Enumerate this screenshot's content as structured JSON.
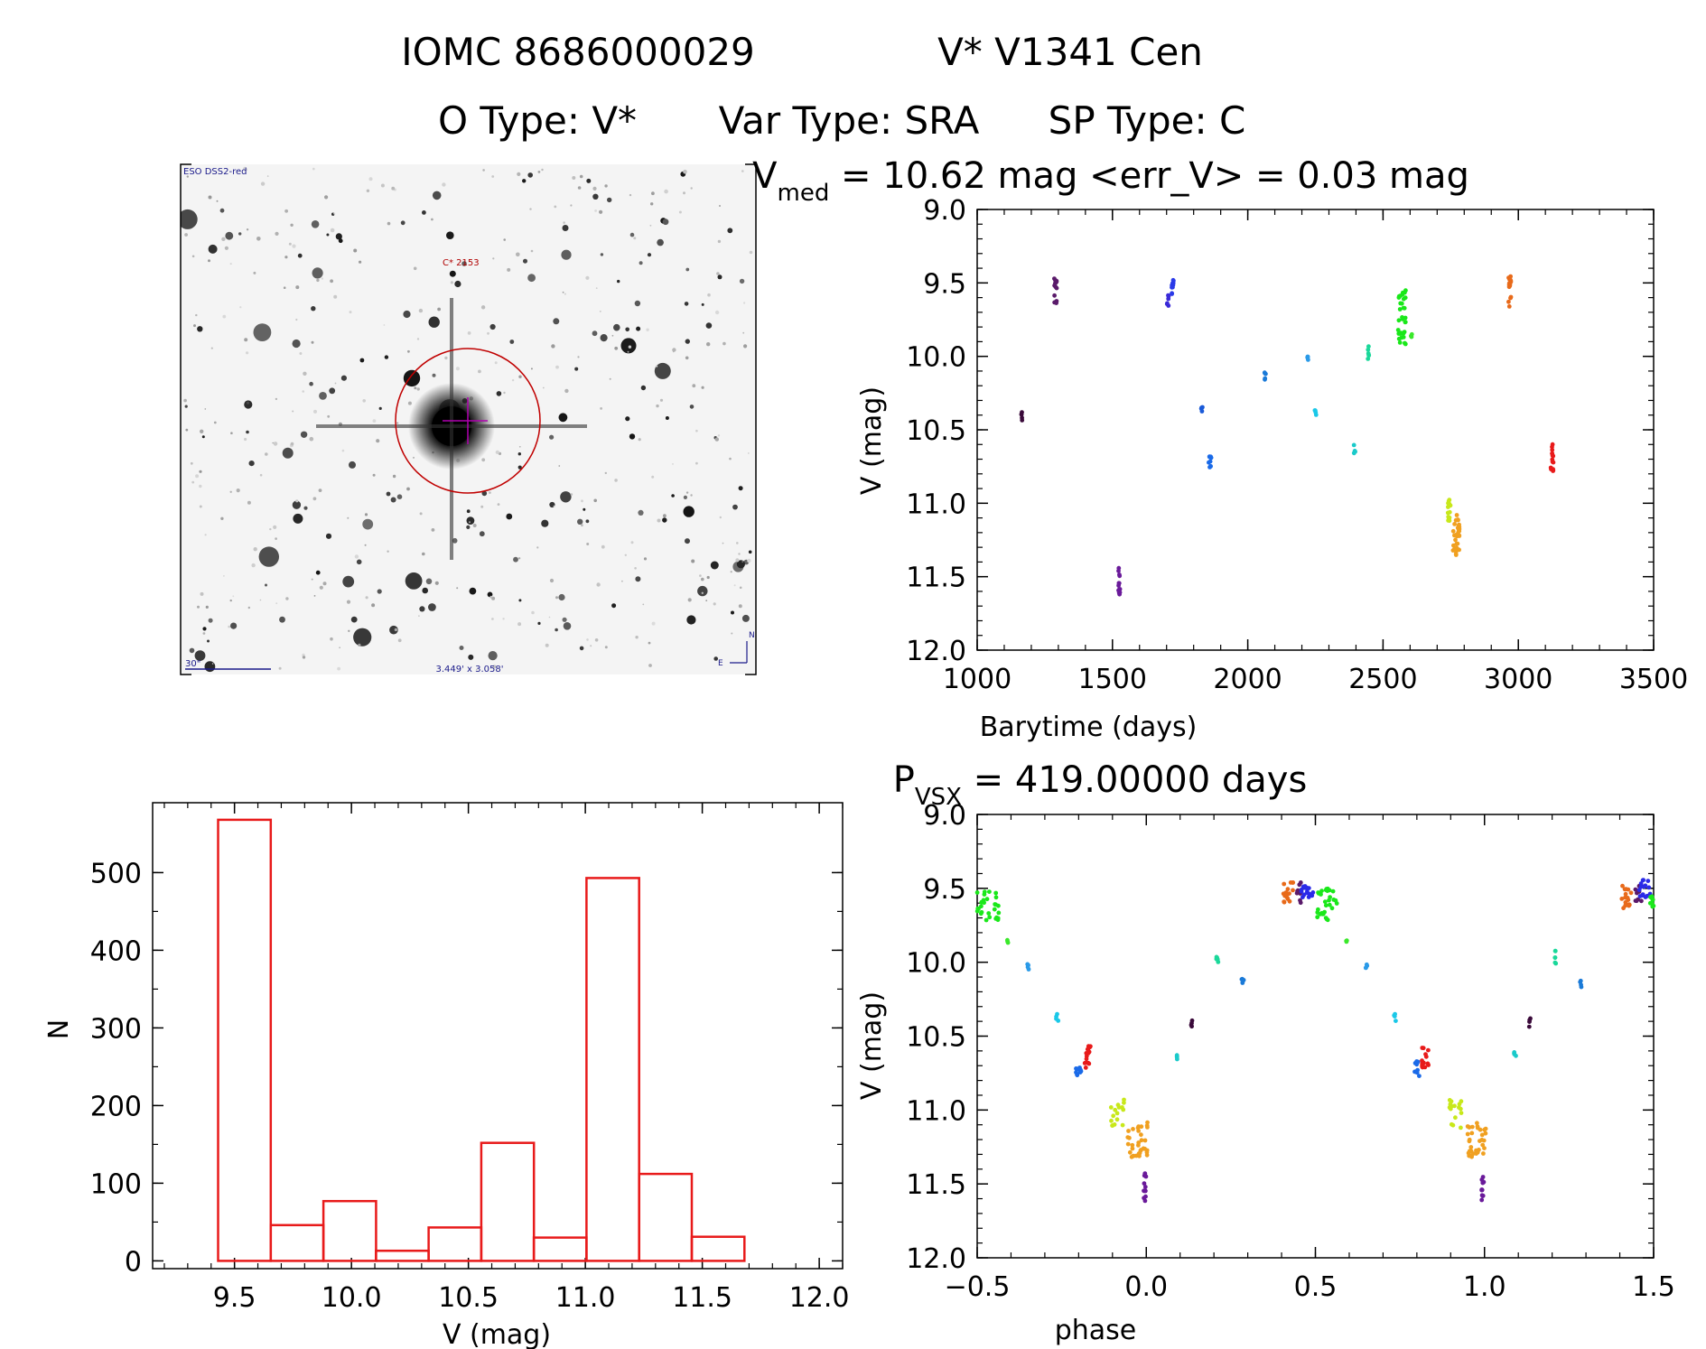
{
  "header": {
    "line1_left": "IOMC 8686000029",
    "line1_right": "V* V1341 Cen",
    "line2_otype": "O Type: V*",
    "line2_vartype": "Var Type: SRA",
    "line2_sptype": "SP Type: C"
  },
  "sky_image": {
    "survey_label": "ESO DSS2-red",
    "target_label": "C* 2153",
    "scale_label": "30\"",
    "fov_label": "3.449' x 3.058'",
    "north_label": "N",
    "east_label": "E",
    "circle_color": "#c00000",
    "crosshair_color": "#b000b0"
  },
  "chart_data": [
    {
      "id": "light_curve",
      "type": "scatter",
      "title_prefix": "V",
      "title_sub": "med",
      "title_rest": " = 10.62 mag <err_V> = 0.03 mag",
      "xlabel": "Barytime (days)",
      "ylabel": "V (mag)",
      "xlim": [
        1000,
        3500
      ],
      "ylim": [
        12.0,
        9.0
      ],
      "y_inverted": true,
      "xticks": [
        1000,
        1500,
        2000,
        2500,
        3000,
        3500
      ],
      "xtick_labels": [
        "1000",
        "1500",
        "2000",
        "2500",
        "3000",
        "3500"
      ],
      "yticks": [
        9.0,
        9.5,
        10.0,
        10.5,
        11.0,
        11.5,
        12.0
      ],
      "ytick_labels": [
        "9.0",
        "9.5",
        "10.0",
        "10.5",
        "11.0",
        "11.5",
        "12.0"
      ],
      "clusters": [
        {
          "x": 1165,
          "dx": 2,
          "ylo": 10.38,
          "yhi": 10.44,
          "color": "#3a0a3a",
          "n": 5
        },
        {
          "x": 1290,
          "dx": 5,
          "ylo": 9.46,
          "yhi": 9.64,
          "color": "#5a1a6a",
          "n": 14
        },
        {
          "x": 1525,
          "dx": 3,
          "ylo": 11.42,
          "yhi": 11.62,
          "color": "#6a1a9a",
          "n": 14
        },
        {
          "x": 1705,
          "dx": 3,
          "ylo": 9.58,
          "yhi": 9.66,
          "color": "#3a2ad8",
          "n": 6
        },
        {
          "x": 1722,
          "dx": 4,
          "ylo": 9.44,
          "yhi": 9.58,
          "color": "#2a3ae8",
          "n": 10
        },
        {
          "x": 1830,
          "dx": 3,
          "ylo": 10.33,
          "yhi": 10.38,
          "color": "#1a5ad8",
          "n": 5
        },
        {
          "x": 1860,
          "dx": 5,
          "ylo": 10.68,
          "yhi": 10.77,
          "color": "#1a6ae8",
          "n": 10
        },
        {
          "x": 2065,
          "dx": 3,
          "ylo": 10.11,
          "yhi": 10.17,
          "color": "#1a7ad8",
          "n": 5
        },
        {
          "x": 2220,
          "dx": 3,
          "ylo": 10.0,
          "yhi": 10.05,
          "color": "#2a9ae8",
          "n": 4
        },
        {
          "x": 2250,
          "dx": 3,
          "ylo": 10.35,
          "yhi": 10.4,
          "color": "#1ac8e8",
          "n": 4
        },
        {
          "x": 2395,
          "dx": 3,
          "ylo": 10.6,
          "yhi": 10.66,
          "color": "#1acaca",
          "n": 4
        },
        {
          "x": 2445,
          "dx": 3,
          "ylo": 9.92,
          "yhi": 10.02,
          "color": "#1ad89a",
          "n": 6
        },
        {
          "x": 2570,
          "dx": 14,
          "ylo": 9.55,
          "yhi": 9.92,
          "color": "#1ae81a",
          "n": 34
        },
        {
          "x": 2605,
          "dx": 3,
          "ylo": 9.84,
          "yhi": 9.87,
          "color": "#3ae82a",
          "n": 3
        },
        {
          "x": 2745,
          "dx": 6,
          "ylo": 10.93,
          "yhi": 11.12,
          "color": "#c8e81a",
          "n": 14
        },
        {
          "x": 2770,
          "dx": 12,
          "ylo": 11.08,
          "yhi": 11.36,
          "color": "#f0a020",
          "n": 34
        },
        {
          "x": 2968,
          "dx": 5,
          "ylo": 9.44,
          "yhi": 9.72,
          "color": "#e86a1a",
          "n": 16
        },
        {
          "x": 3125,
          "dx": 5,
          "ylo": 10.58,
          "yhi": 10.8,
          "color": "#e81a1a",
          "n": 16
        }
      ]
    },
    {
      "id": "phase_curve",
      "type": "scatter",
      "title_prefix": "P",
      "title_sub": "VSX",
      "title_rest": " = 419.00000 days",
      "xlabel": "phase",
      "ylabel": "V (mag)",
      "xlim": [
        -0.5,
        1.5
      ],
      "ylim": [
        12.0,
        9.0
      ],
      "y_inverted": true,
      "xticks": [
        -0.5,
        0.0,
        0.5,
        1.0,
        1.5
      ],
      "xtick_labels": [
        "−0.5",
        "0.0",
        "0.5",
        "1.0",
        "1.5"
      ],
      "yticks": [
        9.0,
        9.5,
        10.0,
        10.5,
        11.0,
        11.5,
        12.0
      ],
      "ytick_labels": [
        "9.0",
        "9.5",
        "10.0",
        "10.5",
        "11.0",
        "11.5",
        "12.0"
      ],
      "clusters": [
        {
          "x": -0.47,
          "dx": 0.035,
          "ylo": 9.5,
          "yhi": 9.72,
          "color": "#1ae81a",
          "n": 30
        },
        {
          "x": -0.41,
          "dx": 0.003,
          "ylo": 9.84,
          "yhi": 9.88,
          "color": "#3ae82a",
          "n": 3
        },
        {
          "x": -0.35,
          "dx": 0.003,
          "ylo": 10.0,
          "yhi": 10.05,
          "color": "#2a9ae8",
          "n": 4
        },
        {
          "x": -0.265,
          "dx": 0.005,
          "ylo": 10.35,
          "yhi": 10.4,
          "color": "#1ac8e8",
          "n": 4
        },
        {
          "x": -0.2,
          "dx": 0.008,
          "ylo": 10.66,
          "yhi": 10.78,
          "color": "#1a6ae8",
          "n": 10
        },
        {
          "x": -0.175,
          "dx": 0.01,
          "ylo": 10.56,
          "yhi": 10.72,
          "color": "#e81a1a",
          "n": 16
        },
        {
          "x": -0.085,
          "dx": 0.02,
          "ylo": 10.93,
          "yhi": 11.12,
          "color": "#c8e81a",
          "n": 16
        },
        {
          "x": -0.025,
          "dx": 0.03,
          "ylo": 11.08,
          "yhi": 11.32,
          "color": "#f0a020",
          "n": 34
        },
        {
          "x": -0.005,
          "dx": 0.004,
          "ylo": 11.42,
          "yhi": 11.62,
          "color": "#6a1a9a",
          "n": 12
        },
        {
          "x": 0.09,
          "dx": 0.003,
          "ylo": 10.6,
          "yhi": 10.66,
          "color": "#1acaca",
          "n": 4
        },
        {
          "x": 0.135,
          "dx": 0.003,
          "ylo": 10.38,
          "yhi": 10.44,
          "color": "#3a0a3a",
          "n": 4
        },
        {
          "x": 0.21,
          "dx": 0.004,
          "ylo": 9.92,
          "yhi": 10.02,
          "color": "#1ad89a",
          "n": 6
        },
        {
          "x": 0.285,
          "dx": 0.003,
          "ylo": 10.11,
          "yhi": 10.17,
          "color": "#1a7ad8",
          "n": 4
        },
        {
          "x": 0.42,
          "dx": 0.015,
          "ylo": 9.46,
          "yhi": 9.64,
          "color": "#e86a1a",
          "n": 16
        },
        {
          "x": 0.455,
          "dx": 0.01,
          "ylo": 9.46,
          "yhi": 9.6,
          "color": "#5a1a6a",
          "n": 10
        },
        {
          "x": 0.475,
          "dx": 0.02,
          "ylo": 9.44,
          "yhi": 9.56,
          "color": "#2a2ae8",
          "n": 16
        },
        {
          "x": 0.53,
          "dx": 0.035,
          "ylo": 9.5,
          "yhi": 9.72,
          "color": "#1ae81a",
          "n": 30
        },
        {
          "x": 0.59,
          "dx": 0.003,
          "ylo": 9.84,
          "yhi": 9.88,
          "color": "#3ae82a",
          "n": 3
        },
        {
          "x": 0.65,
          "dx": 0.003,
          "ylo": 10.0,
          "yhi": 10.05,
          "color": "#2a9ae8",
          "n": 4
        },
        {
          "x": 0.735,
          "dx": 0.005,
          "ylo": 10.35,
          "yhi": 10.4,
          "color": "#1ac8e8",
          "n": 4
        },
        {
          "x": 0.8,
          "dx": 0.008,
          "ylo": 10.66,
          "yhi": 10.78,
          "color": "#1a6ae8",
          "n": 10
        },
        {
          "x": 0.825,
          "dx": 0.01,
          "ylo": 10.56,
          "yhi": 10.72,
          "color": "#e81a1a",
          "n": 16
        },
        {
          "x": 0.915,
          "dx": 0.02,
          "ylo": 10.93,
          "yhi": 11.12,
          "color": "#c8e81a",
          "n": 16
        },
        {
          "x": 0.975,
          "dx": 0.03,
          "ylo": 11.08,
          "yhi": 11.32,
          "color": "#f0a020",
          "n": 34
        },
        {
          "x": 0.995,
          "dx": 0.004,
          "ylo": 11.42,
          "yhi": 11.62,
          "color": "#6a1a9a",
          "n": 12
        },
        {
          "x": 1.09,
          "dx": 0.003,
          "ylo": 10.6,
          "yhi": 10.66,
          "color": "#1acaca",
          "n": 4
        },
        {
          "x": 1.135,
          "dx": 0.003,
          "ylo": 10.38,
          "yhi": 10.44,
          "color": "#3a0a3a",
          "n": 4
        },
        {
          "x": 1.21,
          "dx": 0.004,
          "ylo": 9.92,
          "yhi": 10.02,
          "color": "#1ad89a",
          "n": 6
        },
        {
          "x": 1.285,
          "dx": 0.003,
          "ylo": 10.11,
          "yhi": 10.17,
          "color": "#1a7ad8",
          "n": 4
        },
        {
          "x": 1.42,
          "dx": 0.015,
          "ylo": 9.46,
          "yhi": 9.64,
          "color": "#e86a1a",
          "n": 16
        },
        {
          "x": 1.455,
          "dx": 0.01,
          "ylo": 9.46,
          "yhi": 9.6,
          "color": "#5a1a6a",
          "n": 10
        },
        {
          "x": 1.475,
          "dx": 0.02,
          "ylo": 9.44,
          "yhi": 9.56,
          "color": "#2a2ae8",
          "n": 16
        },
        {
          "x": 1.495,
          "dx": 0.005,
          "ylo": 9.52,
          "yhi": 9.64,
          "color": "#1ae81a",
          "n": 8
        }
      ]
    },
    {
      "id": "histogram",
      "type": "bar",
      "title": "",
      "xlabel": "V (mag)",
      "ylabel": "N",
      "xlim": [
        9.15,
        12.1
      ],
      "ylim": [
        -10,
        590
      ],
      "bar_color": "#e81a1a",
      "xticks": [
        9.5,
        10.0,
        10.5,
        11.0,
        11.5,
        12.0
      ],
      "xtick_labels": [
        "9.5",
        "10.0",
        "10.5",
        "11.0",
        "11.5",
        "12.0"
      ],
      "yticks": [
        0,
        100,
        200,
        300,
        400,
        500
      ],
      "ytick_labels": [
        "0",
        "100",
        "200",
        "300",
        "400",
        "500"
      ],
      "bin_edges": [
        9.43,
        9.655,
        9.88,
        10.105,
        10.33,
        10.555,
        10.78,
        11.005,
        11.23,
        11.455,
        11.68
      ],
      "values": [
        568,
        46,
        77,
        13,
        43,
        152,
        30,
        493,
        112,
        31
      ]
    }
  ]
}
